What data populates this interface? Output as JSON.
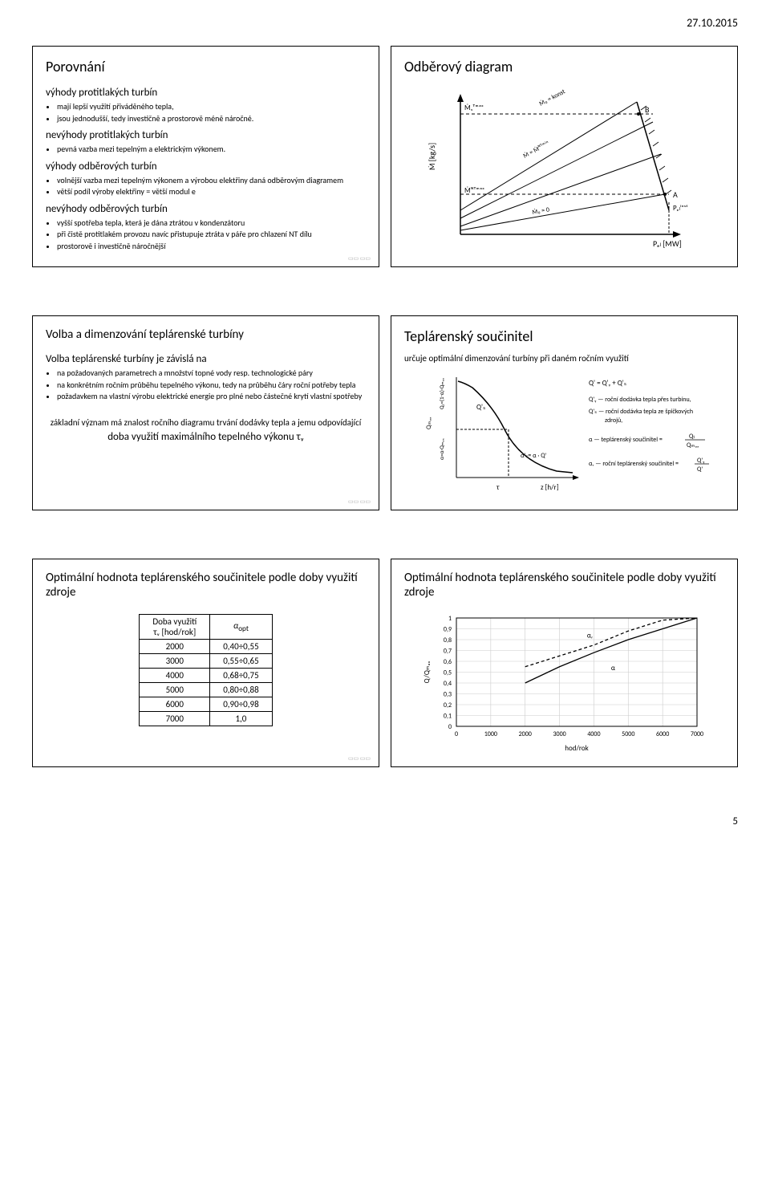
{
  "date": "27.10.2015",
  "pagenum": "5",
  "slide1": {
    "title": "Porovnání",
    "sec1": "výhody protitlakých turbín",
    "sec1_items": [
      "mají lepší využití přiváděného tepla,",
      "jsou jednodušší, tedy investičně a prostorově méně náročné."
    ],
    "sec2": "nevýhody protitlakých turbín",
    "sec2_items": [
      "pevná vazba mezi tepelným a elektrickým výkonem."
    ],
    "sec3": "výhody odběrových turbín",
    "sec3_items": [
      "volnější vazba mezi tepelným výkonem a výrobou elektřiny daná odběrovým diagramem",
      "větší podíl výroby elektřiny = větší modul e"
    ],
    "sec4": "nevýhody odběrových turbín",
    "sec4_items": [
      "vyšší spotřeba tepla, která je dána ztrátou v kondenzátoru",
      "při čistě protitlakém provozu navíc přistupuje ztráta v páře pro chlazení NT dílu",
      "prostorově i investičně náročnější"
    ]
  },
  "slide2": {
    "title": "Odběrový diagram",
    "diagram": {
      "ylabel": "Ṁ [kg/s]",
      "xlabel": "Pₑₗ [MW]",
      "curve_labels": [
        "Ṁ₀ = konst",
        "Ṁ = Ṁᴺᵀᵐⁱⁿ",
        "Ṁ₀ = 0"
      ],
      "ymax_label": "Ṁᵥᵀᵐᵃˣ",
      "ymin_label": "Ṁᴺᵀᵐᵃˣ",
      "points": [
        "A",
        "B"
      ],
      "right_label": "Pₑₗⁱⁿˢᵗ",
      "line_color": "#000000",
      "hatch_color": "#000000",
      "bg": "#ffffff"
    }
  },
  "slide3": {
    "title": "Volba a dimenzování teplárenské turbíny",
    "subtitle": "Volba teplárenské turbíny je závislá na",
    "items": [
      "na požadovaných parametrech a množství topné vody resp. technologické páry",
      "na konkrétním ročním průběhu tepelného výkonu, tedy na průběhu čáry roční potřeby tepla",
      "požadavkem na vlastní výrobu elektrické energie pro plné nebo částečné krytí vlastní spotřeby"
    ],
    "centered1": "základní význam má znalost ročního diagramu trvání dodávky tepla a jemu odpovídající",
    "centered2": "doba využití maximálního tepelného výkonu τᵥ"
  },
  "slide4": {
    "title": "Teplárenský součinitel",
    "subtitle": "určuje optimální dimenzování turbíny při daném ročním využití",
    "diagram": {
      "ylabel_top": "Q₁=(1-α)·Qₘₐₓ",
      "ylabel_bot": "α=α·Qₘₐₓ",
      "ylabel": "Qₘₐₓ",
      "xlabel": "z [h/r]",
      "curve_labels": [
        "Q'ₛ",
        "α'ₛ = α · Q'"
      ],
      "eq": "Q' = Q'ᵧ + Q'ₛ",
      "legend": [
        "Q'ᵧ — roční dodávka tepla přes turbínu,",
        "Q'ₛ — roční dodávka tepla ze špičkových zdrojů,",
        "α — teplárenský součinitel = Qₜ / Qₘₐₓ",
        "αᵣ — roční teplárenský součinitel = Q'ᵧ / Q'"
      ],
      "line_color": "#000000"
    }
  },
  "slide5": {
    "title": "Optimální hodnota teplárenského součinitele podle doby využití zdroje",
    "table": {
      "header": [
        "Doba využití\nτᵥ [hod/rok]",
        "αₒₚₜ"
      ],
      "rows": [
        [
          "2000",
          "0,40÷0,55"
        ],
        [
          "3000",
          "0,55÷0,65"
        ],
        [
          "4000",
          "0,68÷0,75"
        ],
        [
          "5000",
          "0,80÷0,88"
        ],
        [
          "6000",
          "0,90÷0,98"
        ],
        [
          "7000",
          "1,0"
        ]
      ]
    }
  },
  "slide6": {
    "title": "Optimální hodnota teplárenského součinitele podle doby využití zdroje",
    "chart": {
      "type": "line",
      "ylabel": "Q/Qₘₐₓ",
      "xlabel": "hod/rok",
      "xlim": [
        0,
        7000
      ],
      "ylim": [
        0,
        1
      ],
      "xticks": [
        0,
        1000,
        2000,
        3000,
        4000,
        5000,
        6000,
        7000
      ],
      "yticks": [
        0,
        0.1,
        0.2,
        0.3,
        0.4,
        0.5,
        0.6,
        0.7,
        0.8,
        0.9,
        1
      ],
      "series": [
        {
          "name": "α upper",
          "color": "#000000",
          "dash": "4,3",
          "points": [
            [
              2000,
              0.55
            ],
            [
              3000,
              0.65
            ],
            [
              4000,
              0.75
            ],
            [
              5000,
              0.88
            ],
            [
              6000,
              0.98
            ],
            [
              7000,
              1.0
            ]
          ]
        },
        {
          "name": "α lower",
          "color": "#000000",
          "dash": "none",
          "points": [
            [
              2000,
              0.4
            ],
            [
              3000,
              0.55
            ],
            [
              4000,
              0.68
            ],
            [
              5000,
              0.8
            ],
            [
              6000,
              0.9
            ],
            [
              7000,
              1.0
            ]
          ]
        }
      ],
      "annotations": [
        "αᵣ",
        "α"
      ],
      "grid_color": "#cccccc",
      "bg": "#ffffff",
      "label_fontsize": 9,
      "tick_fontsize": 8
    }
  }
}
